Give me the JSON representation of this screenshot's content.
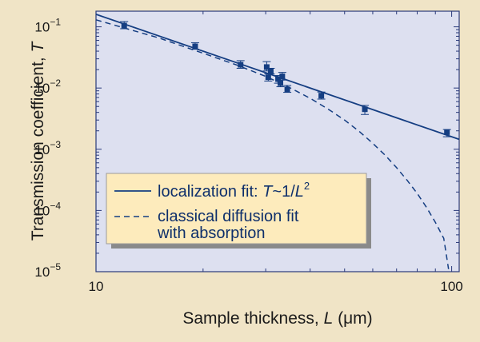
{
  "chart_data": {
    "type": "scatter",
    "x_scale": "log",
    "y_scale": "log",
    "xlim": [
      10,
      105
    ],
    "ylim": [
      1e-05,
      0.18
    ],
    "grid": false,
    "legend_placement": "bottom-left",
    "xlabel": {
      "prefix": "Sample thickness, ",
      "var": "L",
      "unit_open": " (",
      "unit": "μm",
      "unit_close": ")"
    },
    "ylabel": {
      "prefix": "Transmission coefficient, ",
      "var": "T"
    },
    "x_ticks": [
      {
        "value": 10,
        "label": "10"
      },
      {
        "value": 100,
        "label": "100"
      }
    ],
    "y_ticks": [
      {
        "value": 0.1,
        "mantissa": "10",
        "exponent": "−1"
      },
      {
        "value": 0.01,
        "mantissa": "10",
        "exponent": "−2"
      },
      {
        "value": 0.001,
        "mantissa": "10",
        "exponent": "−3"
      },
      {
        "value": 0.0001,
        "mantissa": "10",
        "exponent": "−4"
      },
      {
        "value": 1e-05,
        "mantissa": "10",
        "exponent": "−5"
      }
    ],
    "series": [
      {
        "kind": "points",
        "values": [
          {
            "x": 12,
            "y": 0.105,
            "ylo": 0.093,
            "yhi": 0.122
          },
          {
            "x": 19,
            "y": 0.048,
            "ylo": 0.043,
            "yhi": 0.055
          },
          {
            "x": 25.5,
            "y": 0.024,
            "ylo": 0.021,
            "yhi": 0.028
          },
          {
            "x": 30.2,
            "y": 0.022,
            "ylo": 0.019,
            "yhi": 0.027
          },
          {
            "x": 30.5,
            "y": 0.015,
            "ylo": 0.013,
            "yhi": 0.017
          },
          {
            "x": 31,
            "y": 0.019,
            "ylo": 0.017,
            "yhi": 0.021
          },
          {
            "x": 32.5,
            "y": 0.014,
            "ylo": 0.012,
            "yhi": 0.016
          },
          {
            "x": 33,
            "y": 0.012,
            "ylo": 0.0105,
            "yhi": 0.0135
          },
          {
            "x": 33.4,
            "y": 0.0155,
            "ylo": 0.0135,
            "yhi": 0.018
          },
          {
            "x": 34.5,
            "y": 0.0095,
            "ylo": 0.0085,
            "yhi": 0.011
          },
          {
            "x": 43,
            "y": 0.0075,
            "ylo": 0.0066,
            "yhi": 0.0086
          },
          {
            "x": 57,
            "y": 0.0045,
            "ylo": 0.0037,
            "yhi": 0.0052
          },
          {
            "x": 97,
            "y": 0.0019,
            "ylo": 0.0016,
            "yhi": 0.0021
          }
        ]
      },
      {
        "name": "localization fit",
        "kind": "line",
        "style": "solid",
        "x": [
          10,
          105
        ],
        "y": [
          0.16,
          0.00145
        ]
      },
      {
        "name": "classical diffusion fit with absorption",
        "kind": "line",
        "style": "dashed",
        "x": [
          10,
          15,
          20,
          25,
          30,
          35,
          40,
          45,
          50,
          55,
          60,
          65,
          70,
          75,
          80,
          85,
          90,
          95,
          98
        ],
        "y": [
          0.13,
          0.066,
          0.037,
          0.0235,
          0.0155,
          0.0102,
          0.0068,
          0.0045,
          0.003,
          0.00195,
          0.00125,
          0.0008,
          0.0005,
          0.00031,
          0.00019,
          0.000112,
          6.4e-05,
          3.5e-05,
          1.1e-05
        ]
      }
    ],
    "legend": [
      {
        "style": "solid",
        "text_main": "localization fit: ",
        "text_var1": "T",
        "text_mid": "~1/",
        "text_var2": "L",
        "text_sup": "2"
      },
      {
        "style": "dashed",
        "line1": "classical diffusion fit",
        "line2": "with absorption"
      }
    ]
  },
  "colors": {
    "background": "#f0e4c6",
    "plot_background": "#dde0f0",
    "plot_border": "#2a3a7a",
    "data": "#153e82",
    "legend_background": "#fdebbc",
    "legend_shadow": "#8a8a8a"
  }
}
